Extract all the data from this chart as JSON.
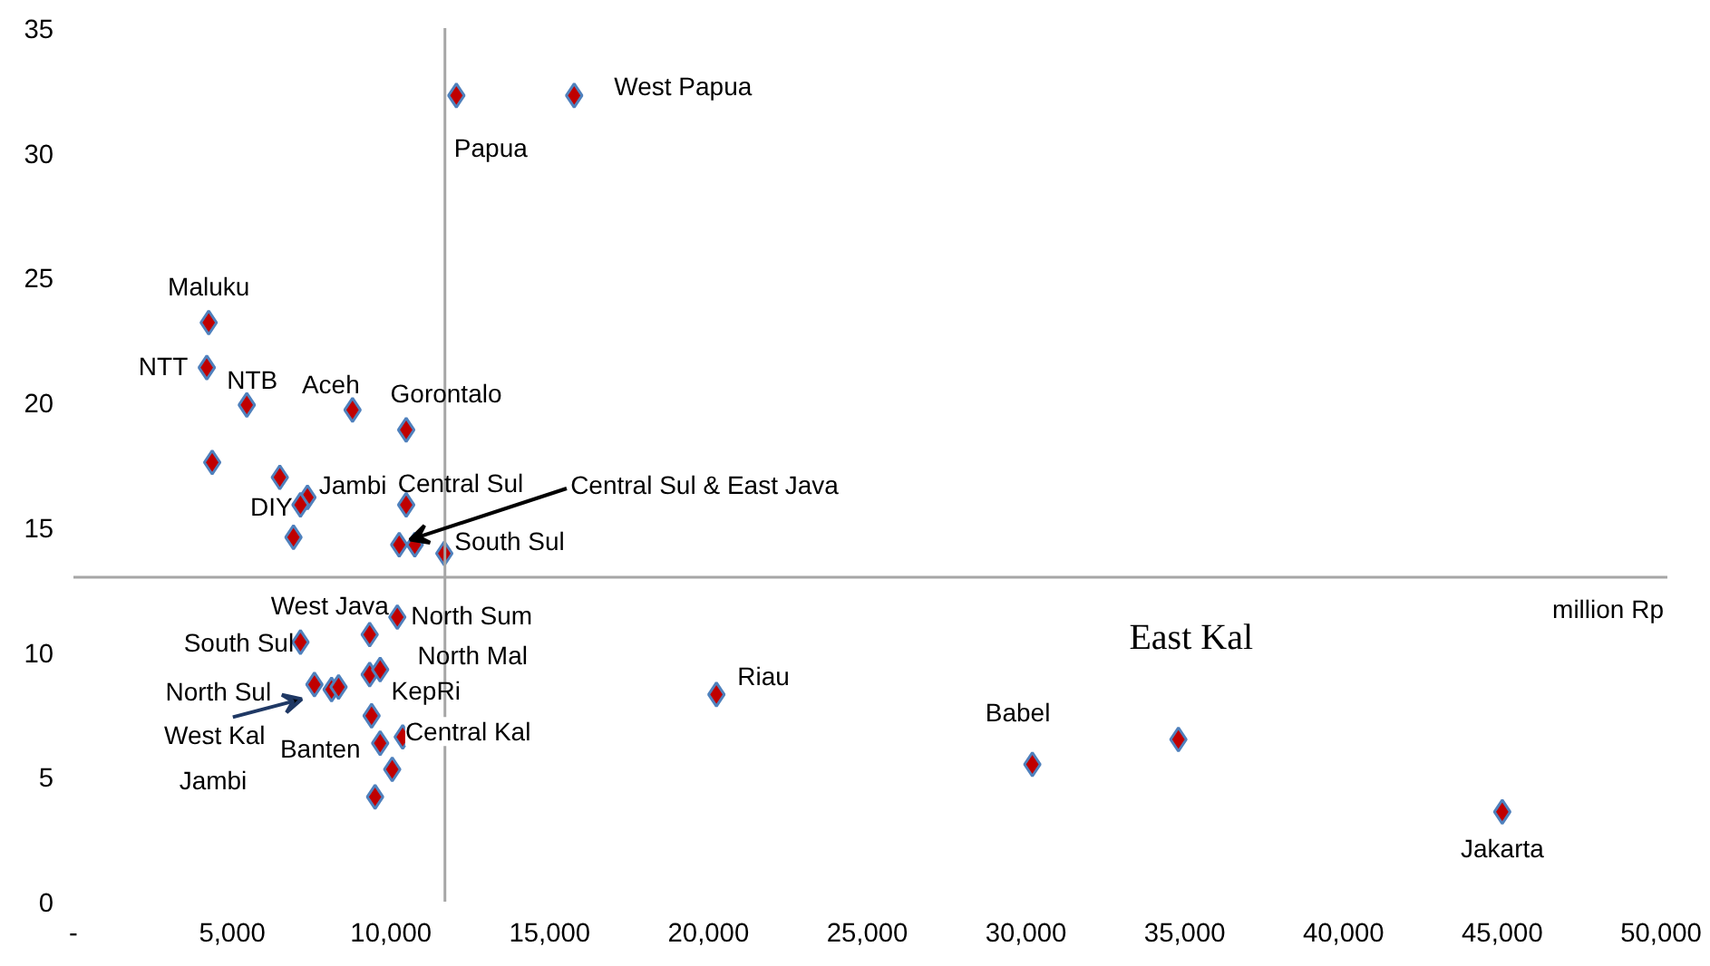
{
  "chart_data": {
    "type": "scatter",
    "marker": "diamond",
    "grid": false,
    "xlim": [
      0,
      50200
    ],
    "ylim": [
      0,
      35
    ],
    "xticks": [
      {
        "value": 0,
        "label": "-"
      },
      {
        "value": 5000,
        "label": "5,000"
      },
      {
        "value": 10000,
        "label": "10,000"
      },
      {
        "value": 15000,
        "label": "15,000"
      },
      {
        "value": 20000,
        "label": "20,000"
      },
      {
        "value": 25000,
        "label": "25,000"
      },
      {
        "value": 30000,
        "label": "30,000"
      },
      {
        "value": 35000,
        "label": "35,000"
      },
      {
        "value": 40000,
        "label": "40,000"
      },
      {
        "value": 45000,
        "label": "45,000"
      },
      {
        "value": 50000,
        "label": "50,000"
      }
    ],
    "yticks": [
      0,
      5,
      10,
      15,
      20,
      25,
      30,
      35
    ],
    "ref_lines": [
      {
        "axis": "x",
        "value": 11700,
        "label": null,
        "color": "#a6a6a6"
      },
      {
        "axis": "y",
        "value": 13,
        "label": null,
        "color": "#a6a6a6"
      }
    ],
    "series": [
      {
        "color": "#c00000",
        "x": [
          12060,
          15770,
          4260,
          4200,
          5460,
          8790,
          10480,
          4370,
          6500,
          7370,
          7150,
          10480,
          6930,
          10260,
          10750,
          11680,
          10200,
          9330,
          7150,
          9330,
          9660,
          7590,
          8130,
          8350,
          9390,
          9660,
          10370,
          10040,
          9500,
          20250,
          30200,
          34800,
          45000
        ],
        "values": [
          32.3,
          32.3,
          23.2,
          21.4,
          19.9,
          19.7,
          18.9,
          17.6,
          17.0,
          16.2,
          15.9,
          15.9,
          14.6,
          14.3,
          14.3,
          13.95,
          11.4,
          10.7,
          10.4,
          9.1,
          9.3,
          8.7,
          8.5,
          8.6,
          7.45,
          6.35,
          6.6,
          5.3,
          4.2,
          8.3,
          5.5,
          6.5,
          3.6
        ]
      }
    ],
    "annotations": [
      {
        "text": "Papua",
        "x": 12060,
        "y": 32.3
      },
      {
        "text": "West Papua",
        "x": 15770,
        "y": 32.3
      },
      {
        "text": "Maluku",
        "x": 4260,
        "y": 23.2
      },
      {
        "text": "NTT",
        "x": 4200,
        "y": 21.4
      },
      {
        "text": "NTB",
        "x": 5460,
        "y": 19.9
      },
      {
        "text": "Aceh",
        "x": 8790,
        "y": 19.7
      },
      {
        "text": "Gorontalo",
        "x": 10480,
        "y": 18.9
      },
      {
        "text": "Jambi",
        "x": 7370,
        "y": 16.2
      },
      {
        "text": "DIY",
        "x": 7150,
        "y": 15.9
      },
      {
        "text": "Central Sul",
        "x": 10480,
        "y": 15.9
      },
      {
        "text": "Central Sul & East Java",
        "x": 10600,
        "y": 14.5
      },
      {
        "text": "South Sul",
        "x": 11680,
        "y": 13.95
      },
      {
        "text": "West Java",
        "x": 9330,
        "y": 10.7
      },
      {
        "text": "North Sum",
        "x": 10200,
        "y": 11.4
      },
      {
        "text": "South Sul",
        "x": 7150,
        "y": 10.4
      },
      {
        "text": "North Mal",
        "x": 9660,
        "y": 9.3
      },
      {
        "text": "North Sul",
        "x": 7590,
        "y": 8.7
      },
      {
        "text": "KepRi",
        "x": 9330,
        "y": 9.1
      },
      {
        "text": "West Kal",
        "x": 7590,
        "y": 8.7
      },
      {
        "text": "Central Kal",
        "x": 10370,
        "y": 6.6
      },
      {
        "text": "Banten",
        "x": 9660,
        "y": 6.35
      },
      "Jambi",
      {
        "text": "Riau",
        "x": 20250,
        "y": 8.3
      },
      {
        "text": "East Kal",
        "x": 34800,
        "y": 6.5
      },
      {
        "text": "Babel",
        "x": 30200,
        "y": 5.5
      },
      {
        "text": "Jakarta",
        "x": 45000,
        "y": 3.6
      },
      "million Rp"
    ]
  }
}
